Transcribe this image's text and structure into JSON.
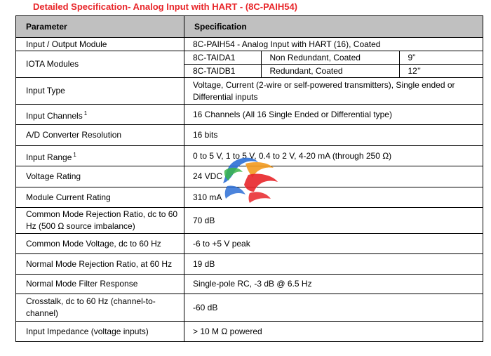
{
  "title": "Detailed Specification- Analog Input with HART - (8C-PAIH54)",
  "headers": {
    "parameter": "Parameter",
    "specification": "Specification"
  },
  "rows": {
    "io_module": {
      "param": "Input / Output Module",
      "spec": "8C-PAIH54 - Analog Input with HART (16), Coated"
    },
    "iota": {
      "param": "IOTA Modules",
      "modules": [
        {
          "name": "8C-TAIDA1",
          "type": "Non Redundant, Coated",
          "size": "9”"
        },
        {
          "name": "8C-TAIDB1",
          "type": "Redundant, Coated",
          "size": "12’’"
        }
      ]
    },
    "input_type": {
      "param": "Input Type",
      "spec": "Voltage, Current (2-wire or self-powered transmitters), Single ended or Differential inputs"
    },
    "input_channels": {
      "param": "Input Channels",
      "note": "1",
      "spec": "16 Channels (All 16 Single Ended or Differential type)"
    },
    "ad_resolution": {
      "param": "A/D Converter Resolution",
      "spec": "16 bits"
    },
    "input_range": {
      "param": "Input Range",
      "note": "1",
      "spec": "0 to 5 V, 1 to 5 V, 0.4 to 2 V, 4-20 mA (through 250 Ω)"
    },
    "voltage_rating": {
      "param": "Voltage Rating",
      "spec": "24 VDC"
    },
    "current_rating": {
      "param": "Module Current Rating",
      "spec": "310 mA"
    },
    "cmrr": {
      "param": "Common Mode Rejection Ratio, dc to 60 Hz (500 Ω source imbalance)",
      "spec": "70 dB"
    },
    "cm_voltage": {
      "param": "Common Mode Voltage, dc to 60 Hz",
      "spec": "-6 to +5 V peak"
    },
    "nmrr": {
      "param": "Normal Mode Rejection Ratio, at 60 Hz",
      "spec": "19 dB"
    },
    "nm_filter": {
      "param": "Normal Mode Filter Response",
      "spec": "Single-pole RC, -3 dB @ 6.5 Hz"
    },
    "crosstalk": {
      "param": "Crosstalk, dc to 60 Hz (channel-to-channel)",
      "spec": "-60 dB"
    },
    "impedance": {
      "param": "Input Impedance (voltage inputs)",
      "spec": "> 10 M Ω powered"
    }
  },
  "colors": {
    "title": "#e8262a",
    "header_bg": "#c0c0c0",
    "logo_blue": "#2b6fd6",
    "logo_red": "#e8262a",
    "logo_orange": "#f29a1f",
    "logo_green": "#3bb54a"
  }
}
